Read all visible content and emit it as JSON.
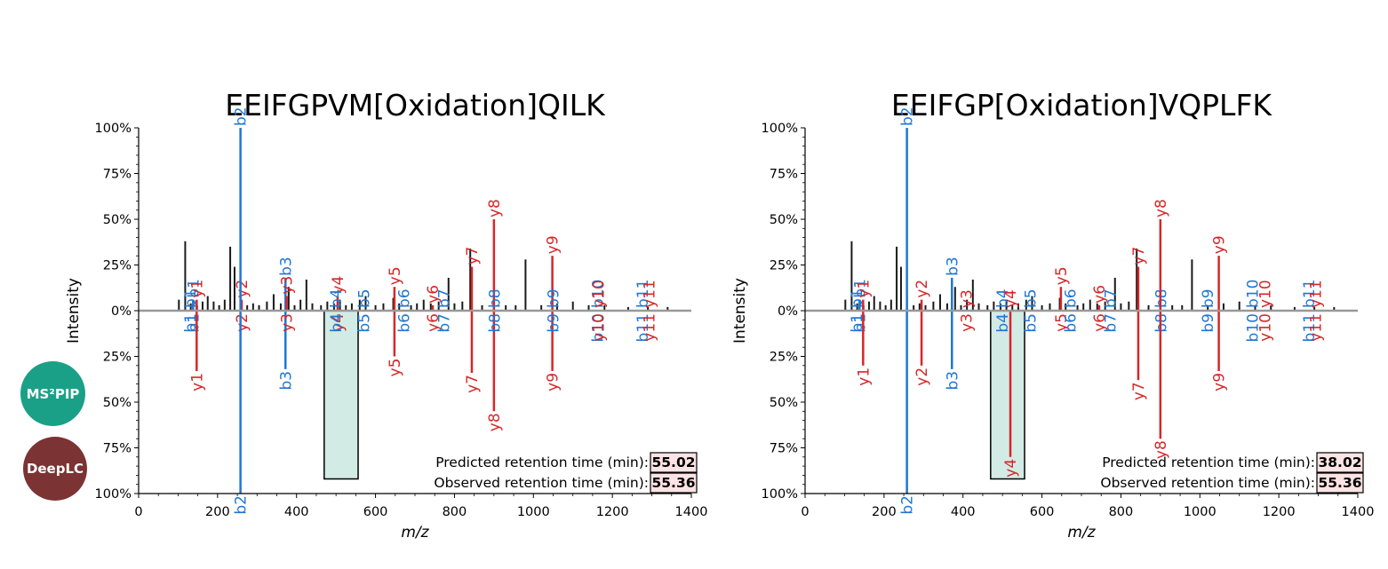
{
  "logos": {
    "ms2pip": {
      "text": "MS²PIP",
      "color": "#1aa087"
    },
    "deeplc": {
      "text": "DeepLC",
      "color": "#7b3333"
    }
  },
  "colors": {
    "b_ion": "#1f77d4",
    "y_ion": "#d62728",
    "peak": "#1a1a1a",
    "baseline": "#999999",
    "box_fill": "#d2ece5",
    "rt_box": "#fde3e3"
  },
  "chart_data": [
    {
      "type": "bar",
      "title": "EEIFGPVM[Oxidation]QILK",
      "xlabel": "m/z",
      "ylabel": "Intensity",
      "xlim": [
        0,
        1400
      ],
      "xticks": [
        0,
        200,
        400,
        600,
        800,
        1000,
        1200,
        1400
      ],
      "yticks": [
        {
          "v": 100,
          "label": "100%"
        },
        {
          "v": 75,
          "label": "75%"
        },
        {
          "v": 50,
          "label": "50%"
        },
        {
          "v": 25,
          "label": "25%"
        },
        {
          "v": 0,
          "label": "0%"
        },
        {
          "v": -25,
          "label": "25%"
        },
        {
          "v": -50,
          "label": "50%"
        },
        {
          "v": -75,
          "label": "75%"
        },
        {
          "v": -100,
          "label": "100%"
        }
      ],
      "ylim": [
        -100,
        100
      ],
      "rt": {
        "predicted_label": "Predicted retention time (min):",
        "predicted": "55.02",
        "observed_label": "Observed retention time (min):",
        "observed": "55.36"
      },
      "highlight": {
        "x0": 470,
        "x1": 556,
        "y": -92
      },
      "observed_peaks": [
        [
          102,
          6
        ],
        [
          118,
          38
        ],
        [
          132,
          4
        ],
        [
          148,
          3
        ],
        [
          162,
          5
        ],
        [
          175,
          8
        ],
        [
          190,
          5
        ],
        [
          204,
          3
        ],
        [
          218,
          6
        ],
        [
          232,
          35
        ],
        [
          243,
          24
        ],
        [
          258,
          8
        ],
        [
          275,
          3
        ],
        [
          290,
          4
        ],
        [
          305,
          3
        ],
        [
          325,
          5
        ],
        [
          342,
          9
        ],
        [
          360,
          4
        ],
        [
          380,
          13
        ],
        [
          395,
          3
        ],
        [
          410,
          6
        ],
        [
          425,
          17
        ],
        [
          440,
          4
        ],
        [
          462,
          3
        ],
        [
          478,
          5
        ],
        [
          495,
          4
        ],
        [
          510,
          6
        ],
        [
          525,
          3
        ],
        [
          540,
          4
        ],
        [
          560,
          6
        ],
        [
          575,
          8
        ],
        [
          600,
          3
        ],
        [
          620,
          4
        ],
        [
          645,
          7
        ],
        [
          660,
          4
        ],
        [
          690,
          3
        ],
        [
          705,
          4
        ],
        [
          722,
          6
        ],
        [
          740,
          4
        ],
        [
          760,
          5
        ],
        [
          785,
          18
        ],
        [
          800,
          4
        ],
        [
          820,
          5
        ],
        [
          840,
          34
        ],
        [
          870,
          3
        ],
        [
          900,
          4
        ],
        [
          930,
          3
        ],
        [
          955,
          3
        ],
        [
          980,
          28
        ],
        [
          1020,
          3
        ],
        [
          1060,
          4
        ],
        [
          1100,
          5
        ],
        [
          1140,
          3
        ],
        [
          1180,
          3
        ],
        [
          1240,
          2
        ],
        [
          1290,
          2
        ],
        [
          1340,
          2
        ]
      ],
      "ions": [
        {
          "label": "b1",
          "type": "b",
          "x": 130,
          "top": 0,
          "bot": 0
        },
        {
          "label": "b1",
          "type": "b",
          "x": 138,
          "top": 6,
          "bot": 0
        },
        {
          "label": "y1",
          "type": "y",
          "x": 147,
          "top": 6,
          "bot": -33
        },
        {
          "label": "y2",
          "type": "y",
          "x": 261,
          "top": 6,
          "bot": 0
        },
        {
          "label": "b2",
          "type": "b",
          "x": 258,
          "top": 100,
          "bot": -100
        },
        {
          "label": "b3",
          "type": "b",
          "x": 372,
          "top": 18,
          "bot": -32
        },
        {
          "label": "y3",
          "type": "y",
          "x": 375,
          "top": 8,
          "bot": 0
        },
        {
          "label": "y4",
          "type": "y",
          "x": 504,
          "top": 8,
          "bot": 0
        },
        {
          "label": "b4",
          "type": "b",
          "x": 500,
          "top": 0,
          "bot": 0
        },
        {
          "label": "b5",
          "type": "b",
          "x": 571,
          "top": 0,
          "bot": 0
        },
        {
          "label": "y5",
          "type": "y",
          "x": 648,
          "top": 13,
          "bot": -25
        },
        {
          "label": "b6",
          "type": "b",
          "x": 672,
          "top": 0,
          "bot": 0
        },
        {
          "label": "y6",
          "type": "y",
          "x": 745,
          "top": 3,
          "bot": 0
        },
        {
          "label": "b7",
          "type": "b",
          "x": 773,
          "top": 0,
          "bot": 0
        },
        {
          "label": "y7",
          "type": "y",
          "x": 844,
          "top": 24,
          "bot": -34
        },
        {
          "label": "y8",
          "type": "y",
          "x": 900,
          "top": 50,
          "bot": -55
        },
        {
          "label": "b8",
          "type": "b",
          "x": 902,
          "top": 0,
          "bot": 0
        },
        {
          "label": "y9",
          "type": "y",
          "x": 1048,
          "top": 30,
          "bot": -33
        },
        {
          "label": "b9",
          "type": "b",
          "x": 1050,
          "top": 0,
          "bot": 0
        },
        {
          "label": "b10",
          "type": "b",
          "x": 1163,
          "top": 0,
          "bot": 0
        },
        {
          "label": "y10",
          "type": "y",
          "x": 1165,
          "top": 0,
          "bot": 0
        },
        {
          "label": "b11",
          "type": "b",
          "x": 1276,
          "top": 0,
          "bot": 0
        },
        {
          "label": "y11",
          "type": "y",
          "x": 1293,
          "top": 0,
          "bot": 0
        }
      ]
    },
    {
      "type": "bar",
      "title": "EEIFGP[Oxidation]VQPLFK",
      "xlabel": "m/z",
      "ylabel": "Intensity",
      "xlim": [
        0,
        1400
      ],
      "xticks": [
        0,
        200,
        400,
        600,
        800,
        1000,
        1200,
        1400
      ],
      "yticks": [
        {
          "v": 100,
          "label": "100%"
        },
        {
          "v": 75,
          "label": "75%"
        },
        {
          "v": 50,
          "label": "50%"
        },
        {
          "v": 25,
          "label": "25%"
        },
        {
          "v": 0,
          "label": "0%"
        },
        {
          "v": -25,
          "label": "25%"
        },
        {
          "v": -50,
          "label": "50%"
        },
        {
          "v": -75,
          "label": "75%"
        },
        {
          "v": -100,
          "label": "100%"
        }
      ],
      "ylim": [
        -100,
        100
      ],
      "rt": {
        "predicted_label": "Predicted retention time (min):",
        "predicted": "38.02",
        "observed_label": "Observed retention time (min):",
        "observed": "55.36"
      },
      "highlight": {
        "x0": 470,
        "x1": 556,
        "y": -92
      },
      "observed_peaks": [
        [
          102,
          6
        ],
        [
          118,
          38
        ],
        [
          132,
          4
        ],
        [
          148,
          3
        ],
        [
          162,
          5
        ],
        [
          175,
          8
        ],
        [
          190,
          5
        ],
        [
          204,
          3
        ],
        [
          218,
          6
        ],
        [
          232,
          35
        ],
        [
          243,
          24
        ],
        [
          258,
          8
        ],
        [
          275,
          3
        ],
        [
          290,
          4
        ],
        [
          305,
          3
        ],
        [
          325,
          5
        ],
        [
          342,
          9
        ],
        [
          360,
          4
        ],
        [
          380,
          13
        ],
        [
          395,
          3
        ],
        [
          410,
          6
        ],
        [
          425,
          17
        ],
        [
          440,
          4
        ],
        [
          462,
          3
        ],
        [
          478,
          5
        ],
        [
          495,
          4
        ],
        [
          510,
          6
        ],
        [
          525,
          3
        ],
        [
          540,
          4
        ],
        [
          560,
          6
        ],
        [
          575,
          8
        ],
        [
          600,
          3
        ],
        [
          620,
          4
        ],
        [
          645,
          7
        ],
        [
          660,
          4
        ],
        [
          690,
          3
        ],
        [
          705,
          4
        ],
        [
          722,
          6
        ],
        [
          740,
          4
        ],
        [
          760,
          5
        ],
        [
          785,
          18
        ],
        [
          800,
          4
        ],
        [
          820,
          5
        ],
        [
          840,
          34
        ],
        [
          870,
          3
        ],
        [
          900,
          4
        ],
        [
          930,
          3
        ],
        [
          955,
          3
        ],
        [
          980,
          28
        ],
        [
          1020,
          3
        ],
        [
          1060,
          4
        ],
        [
          1100,
          5
        ],
        [
          1140,
          3
        ],
        [
          1180,
          3
        ],
        [
          1240,
          2
        ],
        [
          1290,
          2
        ],
        [
          1340,
          2
        ]
      ],
      "ions": [
        {
          "label": "b1",
          "type": "b",
          "x": 130,
          "top": 0,
          "bot": 0
        },
        {
          "label": "b1",
          "type": "b",
          "x": 138,
          "top": 6,
          "bot": 0
        },
        {
          "label": "y1",
          "type": "y",
          "x": 147,
          "top": 6,
          "bot": -30
        },
        {
          "label": "b2",
          "type": "b",
          "x": 258,
          "top": 100,
          "bot": -100
        },
        {
          "label": "y2",
          "type": "y",
          "x": 295,
          "top": 6,
          "bot": -30
        },
        {
          "label": "b3",
          "type": "b",
          "x": 372,
          "top": 18,
          "bot": -32
        },
        {
          "label": "y3",
          "type": "y",
          "x": 408,
          "top": 0,
          "bot": 0
        },
        {
          "label": "b4",
          "type": "b",
          "x": 500,
          "top": 0,
          "bot": 0
        },
        {
          "label": "y4",
          "type": "y",
          "x": 520,
          "top": 0,
          "bot": -80
        },
        {
          "label": "b5",
          "type": "b",
          "x": 571,
          "top": 0,
          "bot": 0
        },
        {
          "label": "y5",
          "type": "y",
          "x": 648,
          "top": 13,
          "bot": 0
        },
        {
          "label": "b6",
          "type": "b",
          "x": 672,
          "top": 0,
          "bot": 0
        },
        {
          "label": "y6",
          "type": "y",
          "x": 745,
          "top": 3,
          "bot": 0
        },
        {
          "label": "b7",
          "type": "b",
          "x": 773,
          "top": 0,
          "bot": 0
        },
        {
          "label": "y7",
          "type": "y",
          "x": 844,
          "top": 24,
          "bot": -38
        },
        {
          "label": "b8",
          "type": "b",
          "x": 902,
          "top": 0,
          "bot": 0
        },
        {
          "label": "y8",
          "type": "y",
          "x": 900,
          "top": 50,
          "bot": -70
        },
        {
          "label": "b9",
          "type": "b",
          "x": 1020,
          "top": 0,
          "bot": 0
        },
        {
          "label": "y9",
          "type": "y",
          "x": 1048,
          "top": 30,
          "bot": -33
        },
        {
          "label": "b10",
          "type": "b",
          "x": 1133,
          "top": 0,
          "bot": 0
        },
        {
          "label": "y10",
          "type": "y",
          "x": 1165,
          "top": 0,
          "bot": 0
        },
        {
          "label": "b11",
          "type": "b",
          "x": 1276,
          "top": 0,
          "bot": 0
        },
        {
          "label": "y11",
          "type": "y",
          "x": 1293,
          "top": 0,
          "bot": 0
        }
      ]
    }
  ]
}
